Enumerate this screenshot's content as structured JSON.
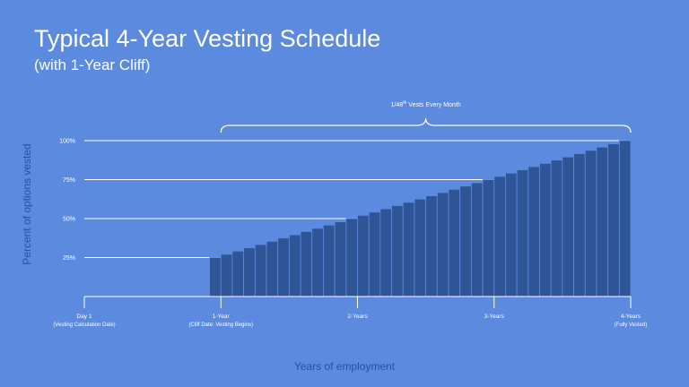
{
  "chart_data": {
    "type": "bar",
    "title": "Typical 4-Year Vesting Schedule",
    "subtitle": "(with 1-Year Cliff)",
    "ylabel": "Percent of options vested",
    "xlabel": "Years of employment",
    "annotation": "1/48th Vests Every Month",
    "annotation_main": "1/48",
    "annotation_sup": "th",
    "annotation_rest": " Vests Every Month",
    "ylim": [
      0,
      100
    ],
    "y_ticks": [
      {
        "value": 25,
        "label": "25%"
      },
      {
        "value": 50,
        "label": "50%"
      },
      {
        "value": 75,
        "label": "75%"
      },
      {
        "value": 100,
        "label": "100%"
      }
    ],
    "x_range_months": [
      0,
      48
    ],
    "x_ticks": [
      {
        "month": 0,
        "label": "Day 1",
        "sublabel": "(Vesting Calculation Date)"
      },
      {
        "month": 12,
        "label": "1-Year",
        "sublabel": "(Cliff Date: Vesting Begins)"
      },
      {
        "month": 24,
        "label": "2-Years",
        "sublabel": ""
      },
      {
        "month": 36,
        "label": "3-Years",
        "sublabel": ""
      },
      {
        "month": 48,
        "label": "4-Years",
        "sublabel": "(Fully Vested)"
      }
    ],
    "months": [
      12,
      13,
      14,
      15,
      16,
      17,
      18,
      19,
      20,
      21,
      22,
      23,
      24,
      25,
      26,
      27,
      28,
      29,
      30,
      31,
      32,
      33,
      34,
      35,
      36,
      37,
      38,
      39,
      40,
      41,
      42,
      43,
      44,
      45,
      46,
      47,
      48
    ],
    "values": [
      25,
      27.08,
      29.17,
      31.25,
      33.33,
      35.42,
      37.5,
      39.58,
      41.67,
      43.75,
      45.83,
      47.92,
      50,
      52.08,
      54.17,
      56.25,
      58.33,
      60.42,
      62.5,
      64.58,
      66.67,
      68.75,
      70.83,
      72.92,
      75,
      77.08,
      79.17,
      81.25,
      83.33,
      85.42,
      87.5,
      89.58,
      91.67,
      93.75,
      95.83,
      97.92,
      100
    ],
    "colors": {
      "background": "#5b8ade",
      "bar": "#2f5597",
      "bar_edge": "#5b8ade",
      "grid": "#ffffff",
      "axis_title": "#2b4f9e"
    }
  }
}
